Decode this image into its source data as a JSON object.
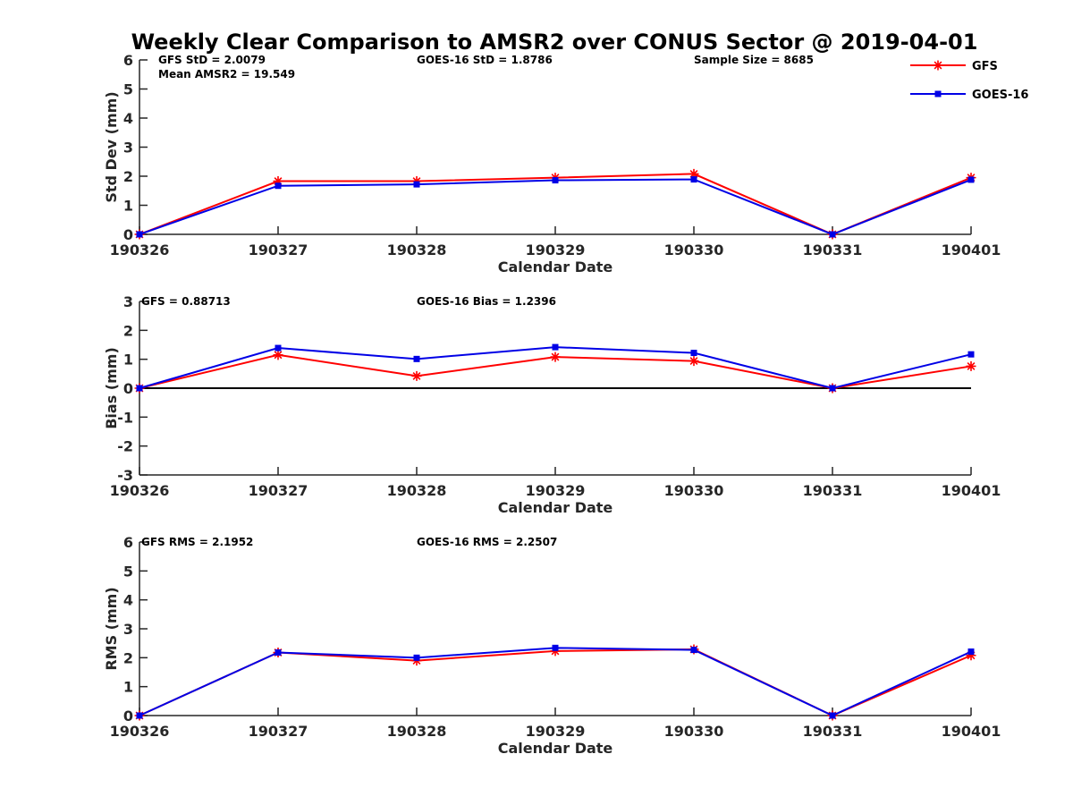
{
  "figure_title": "Weekly Clear Comparison to AMSR2 over CONUS Sector @ 2019-04-01",
  "legend": {
    "placement": "top-right",
    "entries": [
      {
        "name": "GFS",
        "color": "#ff0000",
        "marker": "asterisk"
      },
      {
        "name": "GOES-16",
        "color": "#0000e6",
        "marker": "square"
      }
    ]
  },
  "chart_data": [
    {
      "type": "line",
      "xlabel": "Calendar Date",
      "ylabel": "Std Dev (mm)",
      "categories": [
        "190326",
        "190327",
        "190328",
        "190329",
        "190330",
        "190331",
        "190401"
      ],
      "ylim": [
        0,
        6
      ],
      "yticks": [
        "0",
        "1",
        "2",
        "3",
        "4",
        "5",
        "6"
      ],
      "zero_line": false,
      "annotations": [
        "GFS StD = 2.0079",
        "Mean AMSR2 = 19.549",
        "GOES-16 StD = 1.8786",
        "Sample Size = 8685"
      ],
      "series": [
        {
          "name": "GFS",
          "values": [
            0.0,
            1.83,
            1.83,
            1.95,
            2.08,
            0.0,
            1.95
          ]
        },
        {
          "name": "GOES-16",
          "values": [
            0.0,
            1.67,
            1.72,
            1.86,
            1.89,
            0.0,
            1.88
          ]
        }
      ]
    },
    {
      "type": "line",
      "xlabel": "Calendar Date",
      "ylabel": "Bias (mm)",
      "categories": [
        "190326",
        "190327",
        "190328",
        "190329",
        "190330",
        "190331",
        "190401"
      ],
      "ylim": [
        -3,
        3
      ],
      "yticks": [
        "-3",
        "-2",
        "-1",
        "0",
        "1",
        "2",
        "3"
      ],
      "zero_line": true,
      "annotations": [
        "GFS = 0.88713",
        "GOES-16 Bias  = 1.2396"
      ],
      "series": [
        {
          "name": "GFS",
          "values": [
            0.0,
            1.15,
            0.42,
            1.08,
            0.94,
            0.0,
            0.76
          ]
        },
        {
          "name": "GOES-16",
          "values": [
            0.0,
            1.39,
            1.01,
            1.42,
            1.22,
            0.0,
            1.17
          ]
        }
      ]
    },
    {
      "type": "line",
      "xlabel": "Calendar Date",
      "ylabel": "RMS (mm)",
      "categories": [
        "190326",
        "190327",
        "190328",
        "190329",
        "190330",
        "190331",
        "190401"
      ],
      "ylim": [
        0,
        6
      ],
      "yticks": [
        "0",
        "1",
        "2",
        "3",
        "4",
        "5",
        "6"
      ],
      "zero_line": false,
      "annotations": [
        "GFS RMS = 2.1952",
        "GOES-16 RMS = 2.2507"
      ],
      "series": [
        {
          "name": "GFS",
          "values": [
            0.0,
            2.18,
            1.9,
            2.23,
            2.29,
            0.0,
            2.08
          ]
        },
        {
          "name": "GOES-16",
          "values": [
            0.0,
            2.18,
            2.0,
            2.34,
            2.27,
            0.0,
            2.21
          ]
        }
      ]
    }
  ]
}
